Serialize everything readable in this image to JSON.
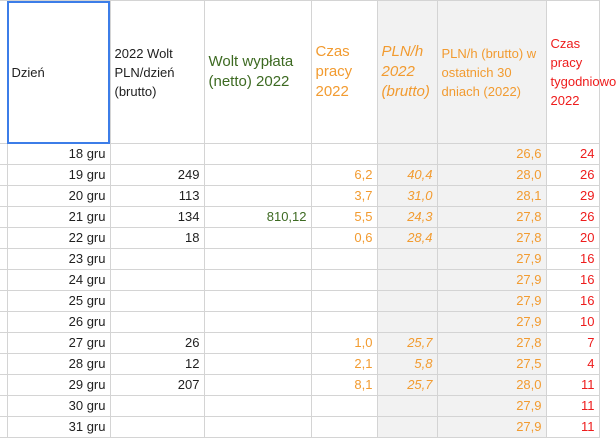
{
  "headers": {
    "day": "Dzień",
    "wolt_pln_day": "2022 Wolt PLN/dzień (brutto)",
    "wolt_payout": "Wolt wypłata (netto) 2022",
    "work_time": "Czas pracy 2022",
    "pln_h": "PLN/h 2022 (brutto)",
    "pln_h_30": "PLN/h (brutto) w ostatnich 30 dniach (2022)",
    "weekly_time": "Czas pracy tygodniowo 2022"
  },
  "colors": {
    "black": "#1f1f1f",
    "green": "#3d6a22",
    "orange": "#f29b30",
    "red": "#ee1c1c",
    "shade": "#f2f2f2",
    "selection": "#3c7de8"
  },
  "rows": [
    {
      "day": "18 gru",
      "pln_day": "",
      "payout": "",
      "hours": "",
      "pln_h": "",
      "pln_h_30": "26,6",
      "weekly": "24"
    },
    {
      "day": "19 gru",
      "pln_day": "249",
      "payout": "",
      "hours": "6,2",
      "pln_h": "40,4",
      "pln_h_30": "28,0",
      "weekly": "26"
    },
    {
      "day": "20 gru",
      "pln_day": "113",
      "payout": "",
      "hours": "3,7",
      "pln_h": "31,0",
      "pln_h_30": "28,1",
      "weekly": "29"
    },
    {
      "day": "21 gru",
      "pln_day": "134",
      "payout": "810,12",
      "hours": "5,5",
      "pln_h": "24,3",
      "pln_h_30": "27,8",
      "weekly": "26"
    },
    {
      "day": "22 gru",
      "pln_day": "18",
      "payout": "",
      "hours": "0,6",
      "pln_h": "28,4",
      "pln_h_30": "27,8",
      "weekly": "20"
    },
    {
      "day": "23 gru",
      "pln_day": "",
      "payout": "",
      "hours": "",
      "pln_h": "",
      "pln_h_30": "27,9",
      "weekly": "16"
    },
    {
      "day": "24 gru",
      "pln_day": "",
      "payout": "",
      "hours": "",
      "pln_h": "",
      "pln_h_30": "27,9",
      "weekly": "16"
    },
    {
      "day": "25 gru",
      "pln_day": "",
      "payout": "",
      "hours": "",
      "pln_h": "",
      "pln_h_30": "27,9",
      "weekly": "16"
    },
    {
      "day": "26 gru",
      "pln_day": "",
      "payout": "",
      "hours": "",
      "pln_h": "",
      "pln_h_30": "27,9",
      "weekly": "10"
    },
    {
      "day": "27 gru",
      "pln_day": "26",
      "payout": "",
      "hours": "1,0",
      "pln_h": "25,7",
      "pln_h_30": "27,8",
      "weekly": "7"
    },
    {
      "day": "28 gru",
      "pln_day": "12",
      "payout": "",
      "hours": "2,1",
      "pln_h": "5,8",
      "pln_h_30": "27,5",
      "weekly": "4"
    },
    {
      "day": "29 gru",
      "pln_day": "207",
      "payout": "",
      "hours": "8,1",
      "pln_h": "25,7",
      "pln_h_30": "28,0",
      "weekly": "11"
    },
    {
      "day": "30 gru",
      "pln_day": "",
      "payout": "",
      "hours": "",
      "pln_h": "",
      "pln_h_30": "27,9",
      "weekly": "11"
    },
    {
      "day": "31 gru",
      "pln_day": "",
      "payout": "",
      "hours": "",
      "pln_h": "",
      "pln_h_30": "27,9",
      "weekly": "11"
    }
  ]
}
